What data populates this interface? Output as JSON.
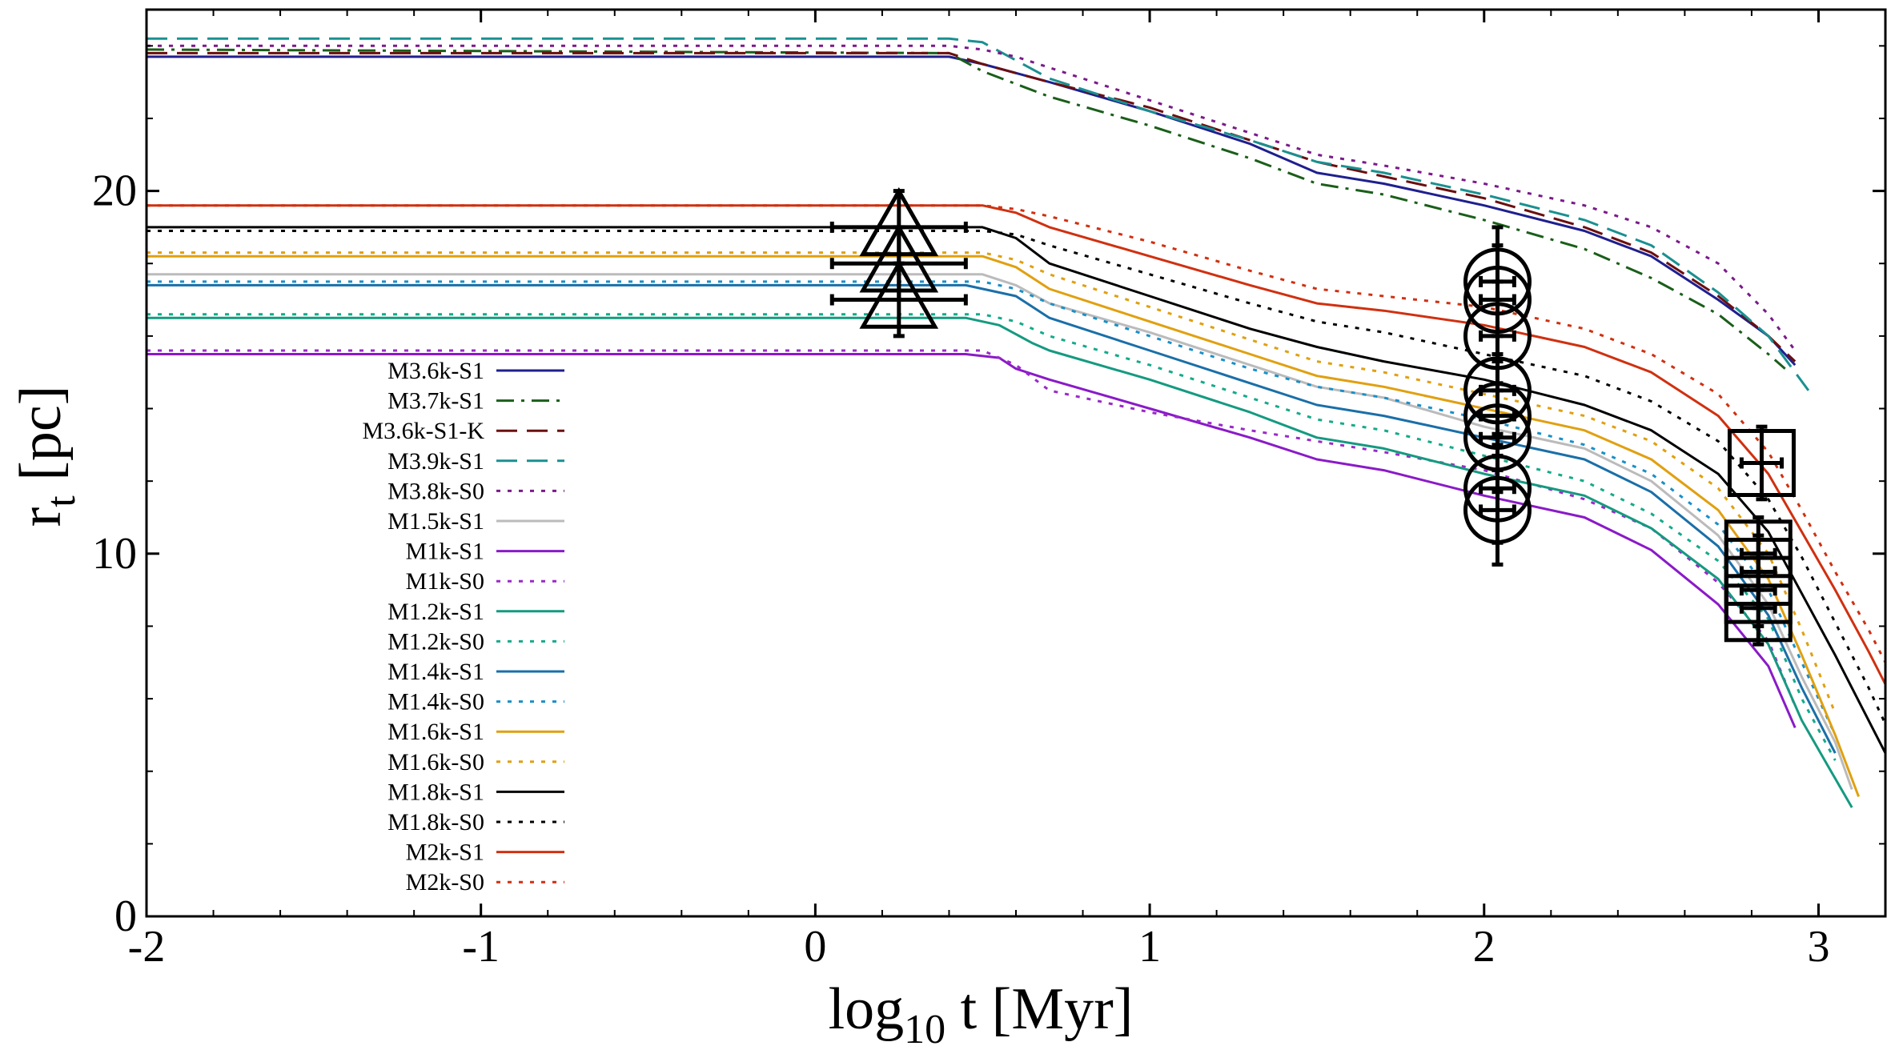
{
  "chart_data": {
    "type": "line",
    "xlabel": "log10 t [Myr]",
    "xlabel_parts": {
      "base": "log",
      "sub": "10",
      "rest": " t [Myr]"
    },
    "ylabel": "rt [pc]",
    "ylabel_parts": {
      "base": "r",
      "sub": "t",
      "rest": " [pc]"
    },
    "xlim": [
      -2,
      3.2
    ],
    "ylim": [
      0,
      25
    ],
    "xticks": [
      -2,
      -1,
      0,
      1,
      2,
      3
    ],
    "xtick_labels": [
      "-2",
      "-1",
      "0",
      "1",
      "2",
      "3"
    ],
    "yticks": [
      0,
      10,
      20
    ],
    "ytick_labels": [
      "0",
      "10",
      "20"
    ],
    "legend_position": "left",
    "series": [
      {
        "name": "M3.6k-S1",
        "color": "#1f1f8f",
        "dash": "solid",
        "x": [
          -2,
          0.4,
          0.5,
          0.7,
          1.0,
          1.3,
          1.5,
          1.7,
          2.0,
          2.3,
          2.5,
          2.7,
          2.85,
          2.93
        ],
        "y": [
          23.7,
          23.7,
          23.5,
          23.0,
          22.2,
          21.3,
          20.5,
          20.2,
          19.6,
          18.9,
          18.2,
          17.0,
          16.0,
          15.2
        ]
      },
      {
        "name": "M3.7k-S1",
        "color": "#1a5e1a",
        "dash": "dashdot",
        "x": [
          -2,
          0.4,
          0.5,
          0.7,
          1.0,
          1.3,
          1.5,
          1.7,
          2.0,
          2.3,
          2.5,
          2.7,
          2.85,
          2.9
        ],
        "y": [
          23.9,
          23.8,
          23.3,
          22.6,
          21.8,
          20.9,
          20.2,
          19.9,
          19.2,
          18.4,
          17.6,
          16.6,
          15.5,
          15.1
        ]
      },
      {
        "name": "M3.6k-S1-K",
        "color": "#6b0f0f",
        "dash": "longdash",
        "x": [
          -2,
          0.4,
          0.5,
          0.7,
          1.0,
          1.3,
          1.5,
          1.7,
          2.0,
          2.3,
          2.5,
          2.7,
          2.85,
          2.93
        ],
        "y": [
          23.8,
          23.8,
          23.5,
          23.0,
          22.3,
          21.4,
          20.8,
          20.4,
          19.8,
          19.0,
          18.3,
          17.1,
          16.0,
          15.3
        ]
      },
      {
        "name": "M3.9k-S1",
        "color": "#1a9090",
        "dash": "longdash",
        "x": [
          -2,
          0.4,
          0.5,
          0.6,
          0.7,
          1.0,
          1.3,
          1.5,
          1.7,
          2.0,
          2.3,
          2.5,
          2.7,
          2.85,
          2.97
        ],
        "y": [
          24.2,
          24.2,
          24.1,
          23.6,
          23.1,
          22.2,
          21.4,
          20.8,
          20.5,
          19.9,
          19.2,
          18.5,
          17.2,
          16.0,
          14.5
        ]
      },
      {
        "name": "M3.8k-S0",
        "color": "#7a1a8a",
        "dash": "dotted",
        "x": [
          -2,
          0.4,
          0.5,
          0.6,
          0.7,
          1.0,
          1.3,
          1.5,
          1.7,
          2.0,
          2.3,
          2.5,
          2.7,
          2.85,
          2.93
        ],
        "y": [
          24.0,
          24.0,
          23.9,
          23.7,
          23.4,
          22.5,
          21.6,
          21.0,
          20.7,
          20.2,
          19.6,
          19.0,
          18.0,
          16.6,
          15.6
        ]
      },
      {
        "name": "M1.5k-S1",
        "color": "#bbbbbb",
        "dash": "solid",
        "x": [
          -2,
          0.5,
          0.6,
          0.7,
          1.0,
          1.3,
          1.5,
          1.7,
          2.0,
          2.3,
          2.5,
          2.7,
          2.85,
          2.95,
          3.05,
          3.1
        ],
        "y": [
          17.7,
          17.7,
          17.4,
          16.9,
          16.1,
          15.2,
          14.6,
          14.3,
          13.5,
          12.9,
          12.0,
          10.5,
          8.6,
          6.6,
          4.8,
          3.5
        ]
      },
      {
        "name": "M1k-S1",
        "color": "#8a1ac8",
        "dash": "solid",
        "x": [
          -2,
          0.45,
          0.55,
          0.6,
          0.7,
          1.0,
          1.3,
          1.5,
          1.7,
          2.0,
          2.3,
          2.5,
          2.7,
          2.85,
          2.93
        ],
        "y": [
          15.5,
          15.5,
          15.4,
          15.1,
          14.8,
          14.0,
          13.2,
          12.6,
          12.3,
          11.6,
          11.0,
          10.1,
          8.6,
          6.9,
          5.2
        ]
      },
      {
        "name": "M1k-S0",
        "color": "#9a2ac8",
        "dash": "dotted",
        "x": [
          -2,
          0.5,
          0.6,
          0.7,
          1.0,
          1.3,
          1.5,
          1.7,
          2.0,
          2.3,
          2.5,
          2.7,
          2.85,
          2.93
        ],
        "y": [
          15.6,
          15.6,
          15.2,
          14.5,
          13.9,
          13.4,
          13.1,
          12.8,
          12.3,
          11.5,
          10.7,
          9.2,
          7.6,
          5.8
        ]
      },
      {
        "name": "M1.2k-S1",
        "color": "#159a80",
        "dash": "solid",
        "x": [
          -2,
          0.45,
          0.55,
          0.65,
          0.7,
          1.0,
          1.3,
          1.5,
          1.7,
          2.0,
          2.3,
          2.5,
          2.7,
          2.85,
          2.95,
          3.05,
          3.1
        ],
        "y": [
          16.5,
          16.5,
          16.3,
          15.8,
          15.6,
          14.8,
          13.9,
          13.2,
          12.9,
          12.2,
          11.6,
          10.7,
          9.3,
          7.5,
          5.4,
          3.8,
          3.0
        ]
      },
      {
        "name": "M1.2k-S0",
        "color": "#15aa8a",
        "dash": "dotted",
        "x": [
          -2,
          0.5,
          0.6,
          0.7,
          1.0,
          1.3,
          1.5,
          1.7,
          2.0,
          2.3,
          2.5,
          2.7,
          2.85,
          2.95,
          3.05
        ],
        "y": [
          16.6,
          16.6,
          16.4,
          16.0,
          15.2,
          14.3,
          13.7,
          13.4,
          12.7,
          12.0,
          11.1,
          9.8,
          8.2,
          6.0,
          4.3
        ]
      },
      {
        "name": "M1.4k-S1",
        "color": "#1a6fa8",
        "dash": "solid",
        "x": [
          -2,
          0.45,
          0.6,
          0.7,
          1.0,
          1.3,
          1.5,
          1.7,
          2.0,
          2.3,
          2.5,
          2.7,
          2.85,
          2.95,
          3.05
        ],
        "y": [
          17.4,
          17.4,
          17.1,
          16.5,
          15.6,
          14.7,
          14.1,
          13.8,
          13.2,
          12.6,
          11.7,
          10.2,
          8.3,
          6.3,
          4.5
        ]
      },
      {
        "name": "M1.4k-S0",
        "color": "#1a8fc8",
        "dash": "dotted",
        "x": [
          -2,
          0.5,
          0.6,
          0.7,
          1.0,
          1.3,
          1.5,
          1.7,
          2.0,
          2.3,
          2.5,
          2.7,
          2.85,
          2.95,
          3.05
        ],
        "y": [
          17.5,
          17.5,
          17.3,
          16.9,
          16.0,
          15.1,
          14.6,
          14.3,
          13.7,
          13.0,
          12.2,
          10.8,
          9.0,
          7.0,
          5.0
        ]
      },
      {
        "name": "M1.6k-S1",
        "color": "#e0a010",
        "dash": "solid",
        "x": [
          -2,
          0.5,
          0.6,
          0.7,
          1.0,
          1.3,
          1.5,
          1.7,
          2.0,
          2.3,
          2.5,
          2.7,
          2.85,
          2.95,
          3.05,
          3.12
        ],
        "y": [
          18.2,
          18.2,
          17.9,
          17.3,
          16.4,
          15.5,
          14.9,
          14.6,
          14.0,
          13.4,
          12.6,
          11.2,
          9.3,
          7.2,
          5.0,
          3.3
        ]
      },
      {
        "name": "M1.6k-S0",
        "color": "#e0a010",
        "dash": "dotted",
        "x": [
          -2,
          0.5,
          0.6,
          0.7,
          1.0,
          1.3,
          1.5,
          1.7,
          2.0,
          2.3,
          2.5,
          2.7,
          2.85,
          2.95,
          3.05
        ],
        "y": [
          18.3,
          18.3,
          18.1,
          17.7,
          16.8,
          15.9,
          15.3,
          15.0,
          14.4,
          13.8,
          13.1,
          11.8,
          10.0,
          7.9,
          5.6
        ]
      },
      {
        "name": "M1.8k-S1",
        "color": "#000000",
        "dash": "solid",
        "x": [
          -2,
          0.5,
          0.6,
          0.7,
          1.0,
          1.3,
          1.5,
          1.7,
          2.0,
          2.3,
          2.5,
          2.7,
          2.85,
          2.95,
          3.05,
          3.15,
          3.2
        ],
        "y": [
          19.0,
          19.0,
          18.7,
          18.0,
          17.1,
          16.2,
          15.7,
          15.3,
          14.8,
          14.1,
          13.4,
          12.2,
          10.6,
          8.9,
          7.2,
          5.4,
          4.5
        ]
      },
      {
        "name": "M1.8k-S0",
        "color": "#000000",
        "dash": "dotted",
        "x": [
          -2,
          0.5,
          0.6,
          0.7,
          1.0,
          1.3,
          1.5,
          1.7,
          2.0,
          2.3,
          2.5,
          2.7,
          2.85,
          2.95,
          3.05,
          3.15,
          3.2
        ],
        "y": [
          18.9,
          18.9,
          18.8,
          18.5,
          17.7,
          16.9,
          16.4,
          16.1,
          15.5,
          14.9,
          14.2,
          13.1,
          11.5,
          9.9,
          8.1,
          6.3,
          5.3
        ]
      },
      {
        "name": "M2k-S1",
        "color": "#d03010",
        "dash": "solid",
        "x": [
          -2,
          0.5,
          0.6,
          0.7,
          1.0,
          1.3,
          1.5,
          1.7,
          2.0,
          2.3,
          2.5,
          2.7,
          2.85,
          2.95,
          3.05,
          3.15,
          3.2
        ],
        "y": [
          19.6,
          19.6,
          19.4,
          19.0,
          18.2,
          17.4,
          16.9,
          16.7,
          16.3,
          15.7,
          15.0,
          13.8,
          12.2,
          10.6,
          9.0,
          7.3,
          6.4
        ]
      },
      {
        "name": "M2k-S0",
        "color": "#d03010",
        "dash": "dotted",
        "x": [
          -2,
          0.5,
          0.6,
          0.7,
          1.0,
          1.3,
          1.5,
          1.7,
          2.0,
          2.3,
          2.5,
          2.7,
          2.85,
          2.95,
          3.05,
          3.15,
          3.2
        ],
        "y": [
          19.6,
          19.6,
          19.5,
          19.3,
          18.6,
          17.8,
          17.3,
          17.1,
          16.8,
          16.2,
          15.5,
          14.4,
          12.8,
          11.2,
          9.5,
          7.9,
          7.0
        ]
      }
    ],
    "observations": [
      {
        "marker": "triangle",
        "x": 0.25,
        "y": 19.0,
        "xerr": 0.2,
        "yerr": 1.0
      },
      {
        "marker": "triangle",
        "x": 0.25,
        "y": 18.0,
        "xerr": 0.2,
        "yerr": 1.0
      },
      {
        "marker": "triangle",
        "x": 0.25,
        "y": 17.0,
        "xerr": 0.2,
        "yerr": 1.0
      },
      {
        "marker": "circle",
        "x": 2.04,
        "y": 17.5,
        "xerr": 0.05,
        "yerr": 1.5
      },
      {
        "marker": "circle",
        "x": 2.04,
        "y": 17.0,
        "xerr": 0.05,
        "yerr": 1.5
      },
      {
        "marker": "circle",
        "x": 2.04,
        "y": 16.0,
        "xerr": 0.05,
        "yerr": 1.5
      },
      {
        "marker": "circle",
        "x": 2.04,
        "y": 14.5,
        "xerr": 0.05,
        "yerr": 1.5
      },
      {
        "marker": "circle",
        "x": 2.04,
        "y": 13.8,
        "xerr": 0.05,
        "yerr": 1.5
      },
      {
        "marker": "circle",
        "x": 2.04,
        "y": 13.2,
        "xerr": 0.05,
        "yerr": 1.5
      },
      {
        "marker": "circle",
        "x": 2.04,
        "y": 11.8,
        "xerr": 0.05,
        "yerr": 1.5
      },
      {
        "marker": "circle",
        "x": 2.04,
        "y": 11.2,
        "xerr": 0.05,
        "yerr": 1.5
      },
      {
        "marker": "square",
        "x": 2.83,
        "y": 12.5,
        "xerr": 0.06,
        "yerr": 1.0
      },
      {
        "marker": "square",
        "x": 2.82,
        "y": 10.0,
        "xerr": 0.05,
        "yerr": 1.0
      },
      {
        "marker": "square",
        "x": 2.82,
        "y": 9.5,
        "xerr": 0.05,
        "yerr": 1.0
      },
      {
        "marker": "square",
        "x": 2.82,
        "y": 9.0,
        "xerr": 0.05,
        "yerr": 1.0
      },
      {
        "marker": "square",
        "x": 2.82,
        "y": 8.5,
        "xerr": 0.05,
        "yerr": 1.0
      }
    ]
  }
}
